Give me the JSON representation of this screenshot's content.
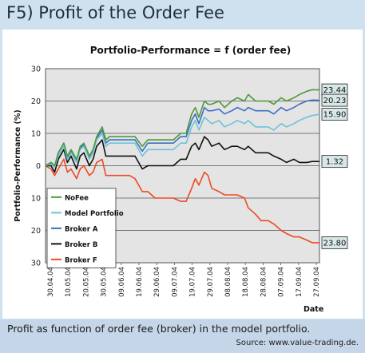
{
  "header": {
    "title": "F5) Profit of the Order Fee"
  },
  "footer": {
    "caption": "Profit as function of order fee (broker) in the model portfolio.",
    "source": "Source: www.value-trading.de."
  },
  "colors": {
    "background": "#cfe0ee",
    "plot": "#e4e4e4",
    "nofee": "#4e9a3a",
    "model_portfolio": "#6cc3d6",
    "broker_a": "#3d6fc4",
    "broker_b": "#111111",
    "broker_f": "#ef4a23",
    "end_box": "#d8e8e8"
  },
  "chart_data": {
    "type": "line",
    "title": "Portfolio-Performance = f (order fee)",
    "xlabel": "Date",
    "ylabel": "Portfolio-Performance (%)",
    "ylim": [
      -30,
      30
    ],
    "yticks": [
      30,
      20,
      10,
      0,
      -10,
      -20,
      -30
    ],
    "ytick_labels": [
      "30",
      "20",
      "10",
      "0",
      "10",
      "20",
      "30"
    ],
    "xlim": [
      "2004-04-30",
      "2004-09-27"
    ],
    "xtick_labels": [
      "30.04.04",
      "10.05.04",
      "20.05.04",
      "30.05.04",
      "09.06.04",
      "19.06.04",
      "29.06.04",
      "09.07.04",
      "19.07.04",
      "29.07.04",
      "08.08.04",
      "18.08.04",
      "28.08.04",
      "07.09.04",
      "17.09.04",
      "27.09.04"
    ],
    "grid": true,
    "legend_position": "bottom-left",
    "series": [
      {
        "name": "NoFee",
        "color": "#4e9a3a",
        "end_label": "23.44",
        "x": [
          "2004-04-30",
          "2004-05-03",
          "2004-05-05",
          "2004-05-07",
          "2004-05-10",
          "2004-05-12",
          "2004-05-14",
          "2004-05-17",
          "2004-05-19",
          "2004-05-21",
          "2004-05-24",
          "2004-05-26",
          "2004-05-28",
          "2004-05-31",
          "2004-06-02",
          "2004-06-04",
          "2004-06-07",
          "2004-06-09",
          "2004-06-11",
          "2004-06-15",
          "2004-06-18",
          "2004-06-22",
          "2004-06-25",
          "2004-06-29",
          "2004-07-02",
          "2004-07-06",
          "2004-07-09",
          "2004-07-13",
          "2004-07-16",
          "2004-07-19",
          "2004-07-21",
          "2004-07-23",
          "2004-07-26",
          "2004-07-28",
          "2004-07-30",
          "2004-08-03",
          "2004-08-06",
          "2004-08-10",
          "2004-08-13",
          "2004-08-17",
          "2004-08-19",
          "2004-08-23",
          "2004-08-26",
          "2004-08-30",
          "2004-09-02",
          "2004-09-06",
          "2004-09-09",
          "2004-09-13",
          "2004-09-16",
          "2004-09-20",
          "2004-09-23",
          "2004-09-27"
        ],
        "y": [
          0,
          1,
          0,
          4,
          7,
          3,
          5,
          2,
          6,
          7,
          3,
          5,
          9,
          12,
          8,
          9,
          9,
          9,
          9,
          9,
          9,
          6,
          8,
          8,
          8,
          8,
          8,
          10,
          10,
          16,
          18,
          15,
          20,
          19,
          19,
          20,
          18,
          20,
          21,
          20,
          22,
          20,
          20,
          20,
          19,
          21,
          20,
          21,
          22,
          23,
          23.5,
          23.44
        ]
      },
      {
        "name": "Model Portfolio",
        "color": "#6cc3d6",
        "end_label": "15.90",
        "x": [
          "2004-04-30",
          "2004-05-03",
          "2004-05-05",
          "2004-05-07",
          "2004-05-10",
          "2004-05-12",
          "2004-05-14",
          "2004-05-17",
          "2004-05-19",
          "2004-05-21",
          "2004-05-24",
          "2004-05-26",
          "2004-05-28",
          "2004-05-31",
          "2004-06-02",
          "2004-06-04",
          "2004-06-07",
          "2004-06-09",
          "2004-06-11",
          "2004-06-15",
          "2004-06-18",
          "2004-06-22",
          "2004-06-25",
          "2004-06-29",
          "2004-07-02",
          "2004-07-06",
          "2004-07-09",
          "2004-07-13",
          "2004-07-16",
          "2004-07-19",
          "2004-07-21",
          "2004-07-23",
          "2004-07-26",
          "2004-07-28",
          "2004-07-30",
          "2004-08-03",
          "2004-08-06",
          "2004-08-10",
          "2004-08-13",
          "2004-08-17",
          "2004-08-19",
          "2004-08-23",
          "2004-08-26",
          "2004-08-30",
          "2004-09-02",
          "2004-09-06",
          "2004-09-09",
          "2004-09-13",
          "2004-09-16",
          "2004-09-20",
          "2004-09-23",
          "2004-09-27"
        ],
        "y": [
          0,
          0.5,
          -0.5,
          3,
          6,
          2,
          4,
          1,
          5,
          6,
          2,
          4,
          8,
          10,
          6,
          7,
          7,
          7,
          7,
          7,
          7,
          3,
          5,
          5,
          5,
          5,
          5,
          7,
          7,
          12,
          14,
          11,
          15,
          14,
          13,
          14,
          12,
          13,
          14,
          13,
          14,
          12,
          12,
          12,
          11,
          13,
          12,
          13,
          14,
          15,
          15.5,
          15.9
        ]
      },
      {
        "name": "Broker A",
        "color": "#3d6fc4",
        "end_label": "20.23",
        "x": [
          "2004-04-30",
          "2004-05-03",
          "2004-05-05",
          "2004-05-07",
          "2004-05-10",
          "2004-05-12",
          "2004-05-14",
          "2004-05-17",
          "2004-05-19",
          "2004-05-21",
          "2004-05-24",
          "2004-05-26",
          "2004-05-28",
          "2004-05-31",
          "2004-06-02",
          "2004-06-04",
          "2004-06-07",
          "2004-06-09",
          "2004-06-11",
          "2004-06-15",
          "2004-06-18",
          "2004-06-22",
          "2004-06-25",
          "2004-06-29",
          "2004-07-02",
          "2004-07-06",
          "2004-07-09",
          "2004-07-13",
          "2004-07-16",
          "2004-07-19",
          "2004-07-21",
          "2004-07-23",
          "2004-07-26",
          "2004-07-28",
          "2004-07-30",
          "2004-08-03",
          "2004-08-06",
          "2004-08-10",
          "2004-08-13",
          "2004-08-17",
          "2004-08-19",
          "2004-08-23",
          "2004-08-26",
          "2004-08-30",
          "2004-09-02",
          "2004-09-06",
          "2004-09-09",
          "2004-09-13",
          "2004-09-16",
          "2004-09-20",
          "2004-09-23",
          "2004-09-27"
        ],
        "y": [
          0,
          1,
          -0.3,
          4,
          7,
          2.5,
          4.5,
          1.5,
          5.5,
          6.5,
          2.5,
          4.5,
          8.5,
          11,
          7,
          8,
          8,
          8,
          8,
          8,
          8,
          4.5,
          7,
          7,
          7,
          7,
          7,
          9,
          9,
          14,
          16,
          13,
          18,
          17,
          17,
          17.5,
          16,
          17,
          18,
          17,
          18,
          17,
          17,
          17,
          16,
          18,
          17,
          18,
          19,
          20,
          20.3,
          20.23
        ]
      },
      {
        "name": "Broker B",
        "color": "#111111",
        "end_label": "1.32",
        "x": [
          "2004-04-30",
          "2004-05-03",
          "2004-05-05",
          "2004-05-07",
          "2004-05-10",
          "2004-05-12",
          "2004-05-14",
          "2004-05-17",
          "2004-05-19",
          "2004-05-21",
          "2004-05-24",
          "2004-05-26",
          "2004-05-28",
          "2004-05-31",
          "2004-06-02",
          "2004-06-04",
          "2004-06-07",
          "2004-06-09",
          "2004-06-11",
          "2004-06-15",
          "2004-06-18",
          "2004-06-22",
          "2004-06-25",
          "2004-06-29",
          "2004-07-02",
          "2004-07-06",
          "2004-07-09",
          "2004-07-13",
          "2004-07-16",
          "2004-07-19",
          "2004-07-21",
          "2004-07-23",
          "2004-07-26",
          "2004-07-28",
          "2004-07-30",
          "2004-08-03",
          "2004-08-06",
          "2004-08-10",
          "2004-08-13",
          "2004-08-17",
          "2004-08-19",
          "2004-08-23",
          "2004-08-26",
          "2004-08-30",
          "2004-09-02",
          "2004-09-06",
          "2004-09-09",
          "2004-09-13",
          "2004-09-16",
          "2004-09-20",
          "2004-09-23",
          "2004-09-27"
        ],
        "y": [
          0,
          0,
          -2,
          2,
          5,
          1,
          3,
          -1,
          3,
          4,
          0,
          2,
          6,
          8,
          3,
          3,
          3,
          3,
          3,
          3,
          3,
          -1,
          0,
          0,
          0,
          0,
          0,
          2,
          2,
          6,
          7,
          5,
          9,
          8,
          6,
          7,
          5,
          6,
          6,
          5,
          6,
          4,
          4,
          4,
          3,
          2,
          1,
          2,
          1,
          1,
          1.3,
          1.32
        ]
      },
      {
        "name": "Broker F",
        "color": "#ef4a23",
        "end_label": "23.80",
        "x": [
          "2004-04-30",
          "2004-05-03",
          "2004-05-05",
          "2004-05-07",
          "2004-05-10",
          "2004-05-12",
          "2004-05-14",
          "2004-05-17",
          "2004-05-19",
          "2004-05-21",
          "2004-05-24",
          "2004-05-26",
          "2004-05-28",
          "2004-05-31",
          "2004-06-02",
          "2004-06-04",
          "2004-06-07",
          "2004-06-09",
          "2004-06-11",
          "2004-06-15",
          "2004-06-18",
          "2004-06-22",
          "2004-06-25",
          "2004-06-29",
          "2004-07-02",
          "2004-07-06",
          "2004-07-09",
          "2004-07-13",
          "2004-07-16",
          "2004-07-19",
          "2004-07-21",
          "2004-07-23",
          "2004-07-26",
          "2004-07-28",
          "2004-07-30",
          "2004-08-03",
          "2004-08-06",
          "2004-08-10",
          "2004-08-13",
          "2004-08-17",
          "2004-08-19",
          "2004-08-23",
          "2004-08-26",
          "2004-08-30",
          "2004-09-02",
          "2004-09-06",
          "2004-09-09",
          "2004-09-13",
          "2004-09-16",
          "2004-09-20",
          "2004-09-23",
          "2004-09-27"
        ],
        "y": [
          0,
          -1,
          -3,
          -1,
          2,
          -2,
          -1,
          -4,
          -1,
          0,
          -3,
          -2,
          1,
          2,
          -3,
          -3,
          -3,
          -3,
          -3,
          -3,
          -4,
          -8,
          -8,
          -10,
          -10,
          -10,
          -10,
          -11,
          -11,
          -7,
          -4,
          -6,
          -2,
          -3,
          -7,
          -8,
          -9,
          -9,
          -9,
          -10,
          -13,
          -15,
          -17,
          -17,
          -18,
          -20,
          -21,
          -22,
          -22,
          -23,
          -23.8,
          -23.8
        ]
      }
    ]
  }
}
